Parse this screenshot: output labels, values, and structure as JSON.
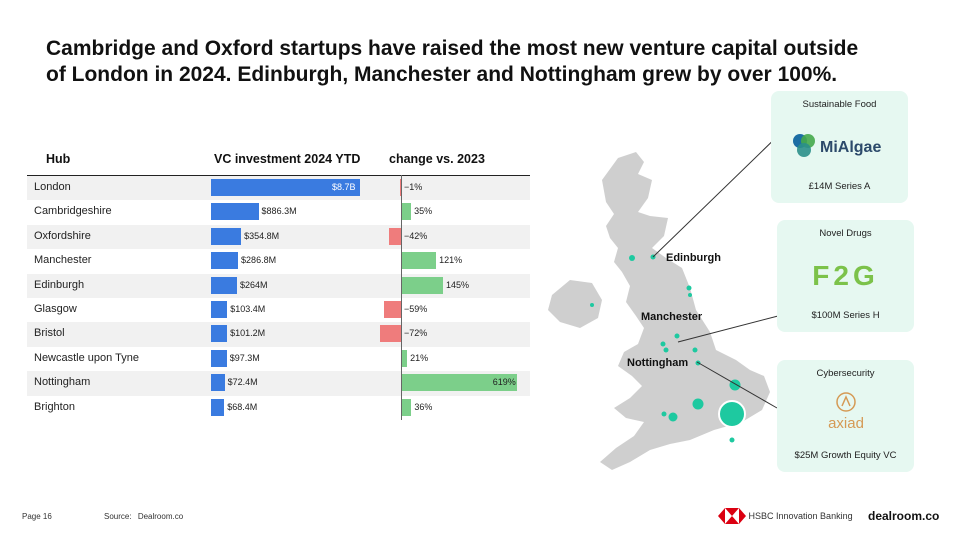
{
  "title": {
    "line1": "Cambridge and Oxford startups have raised the most new venture capital outside",
    "line2": "of London in 2024. Edinburgh, Manchester and Nottingham grew by over 100%."
  },
  "table": {
    "headers": {
      "hub": "Hub",
      "vc": "VC investment 2024 YTD",
      "change": "change vs. 2023"
    }
  },
  "chart_data": {
    "type": "table",
    "columns": [
      "Hub",
      "VC investment 2024 YTD",
      "change vs. 2023"
    ],
    "rows": [
      {
        "hub": "London",
        "vc_label": "$8.7B",
        "vc_musd": 8700,
        "change_label": "−1%",
        "change_pct": -1
      },
      {
        "hub": "Cambridgeshire",
        "vc_label": "$886.3M",
        "vc_musd": 886.3,
        "change_label": "35%",
        "change_pct": 35
      },
      {
        "hub": "Oxfordshire",
        "vc_label": "$354.8M",
        "vc_musd": 354.8,
        "change_label": "−42%",
        "change_pct": -42
      },
      {
        "hub": "Manchester",
        "vc_label": "$286.8M",
        "vc_musd": 286.8,
        "change_label": "121%",
        "change_pct": 121
      },
      {
        "hub": "Edinburgh",
        "vc_label": "$264M",
        "vc_musd": 264,
        "change_label": "145%",
        "change_pct": 145
      },
      {
        "hub": "Glasgow",
        "vc_label": "$103.4M",
        "vc_musd": 103.4,
        "change_label": "−59%",
        "change_pct": -59
      },
      {
        "hub": "Bristol",
        "vc_label": "$101.2M",
        "vc_musd": 101.2,
        "change_label": "−72%",
        "change_pct": -72
      },
      {
        "hub": "Newcastle upon Tyne",
        "vc_label": "$97.3M",
        "vc_musd": 97.3,
        "change_label": "21%",
        "change_pct": 21
      },
      {
        "hub": "Nottingham",
        "vc_label": "$72.4M",
        "vc_musd": 72.4,
        "change_label": "619%",
        "change_pct": 619
      },
      {
        "hub": "Brighton",
        "vc_label": "$68.4M",
        "vc_musd": 68.4,
        "change_label": "36%",
        "change_pct": 36
      }
    ]
  },
  "map": {
    "labels": {
      "edinburgh": "Edinburgh",
      "manchester": "Manchester",
      "nottingham": "Nottingham"
    }
  },
  "cards": [
    {
      "category": "Sustainable Food",
      "company": "MiAlgae",
      "deal": "£14M Series A"
    },
    {
      "category": "Novel Drugs",
      "company": "F2G",
      "deal": "$100M  Series H"
    },
    {
      "category": "Cybersecurity",
      "company": "axiad",
      "deal": "$25M Growth Equity VC"
    }
  ],
  "footer": {
    "page": "Page",
    "page_num": "16",
    "source_label": "Source:",
    "source": "Dealroom.co",
    "hsbc": "HSBC Innovation Banking",
    "dealroom_logo": "dealroom.co"
  },
  "colors": {
    "vc_bar": "#3a7be0",
    "positive": "#7ccf8a",
    "negative": "#ef7c7c",
    "card_bg": "#e6f8f1",
    "dot": "#1ec9a0",
    "hsbc_red": "#db0011"
  }
}
